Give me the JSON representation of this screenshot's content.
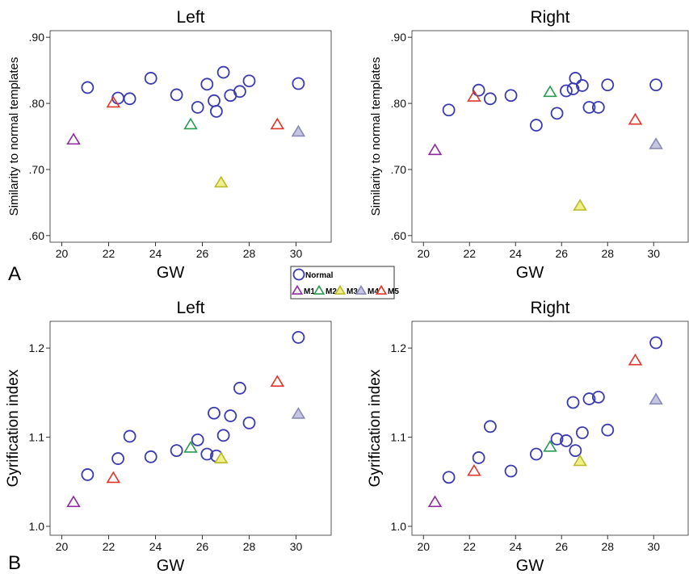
{
  "panel_labels": {
    "A": "A",
    "B": "B"
  },
  "legend": {
    "items": [
      {
        "key": "Normal",
        "label": "Normal",
        "shape": "circle",
        "color": "#3b3bb0",
        "fill": "none"
      },
      {
        "key": "M1",
        "label": "M1",
        "shape": "triangle",
        "color": "#8e2b9e",
        "fill": "none"
      },
      {
        "key": "M2",
        "label": "M2",
        "shape": "triangle",
        "color": "#2a9a50",
        "fill": "none"
      },
      {
        "key": "M3",
        "label": "M3",
        "shape": "triangle",
        "color": "#b9b92a",
        "fill": "#f0f08a"
      },
      {
        "key": "M4",
        "label": "M4",
        "shape": "triangle",
        "color": "#8a8ab8",
        "fill": "#c6c6e2"
      },
      {
        "key": "M5",
        "label": "M5",
        "shape": "triangle",
        "color": "#e0352b",
        "fill": "none"
      }
    ]
  },
  "chart_data": [
    {
      "type": "scatter",
      "title": "Left",
      "xlabel": "GW",
      "ylabel": "Similarity to normal templates",
      "xlim": [
        19.5,
        31.5
      ],
      "ylim": [
        0.59,
        0.91
      ],
      "xticks": [
        "20",
        "22",
        "24",
        "26",
        "28",
        "30"
      ],
      "yticks": [
        ".60",
        ".70",
        ".80",
        ".90"
      ],
      "series": [
        {
          "name": "Normal",
          "points": [
            [
              21.1,
              0.824
            ],
            [
              22.4,
              0.808
            ],
            [
              22.9,
              0.807
            ],
            [
              23.8,
              0.838
            ],
            [
              24.9,
              0.813
            ],
            [
              25.8,
              0.794
            ],
            [
              26.2,
              0.829
            ],
            [
              26.5,
              0.804
            ],
            [
              26.6,
              0.788
            ],
            [
              26.9,
              0.847
            ],
            [
              27.2,
              0.812
            ],
            [
              27.6,
              0.818
            ],
            [
              28.0,
              0.834
            ],
            [
              30.1,
              0.83
            ]
          ]
        },
        {
          "name": "M1",
          "points": [
            [
              20.5,
              0.745
            ]
          ]
        },
        {
          "name": "M2",
          "points": [
            [
              25.5,
              0.768
            ]
          ]
        },
        {
          "name": "M3",
          "points": [
            [
              26.8,
              0.68
            ]
          ]
        },
        {
          "name": "M4",
          "points": [
            [
              30.1,
              0.757
            ]
          ]
        },
        {
          "name": "M5",
          "points": [
            [
              22.2,
              0.801
            ],
            [
              29.2,
              0.768
            ]
          ]
        }
      ]
    },
    {
      "type": "scatter",
      "title": "Right",
      "xlabel": "GW",
      "ylabel": "Similarity to normal templates",
      "xlim": [
        19.5,
        31.5
      ],
      "ylim": [
        0.59,
        0.91
      ],
      "xticks": [
        "20",
        "22",
        "24",
        "26",
        "28",
        "30"
      ],
      "yticks": [
        ".60",
        ".70",
        ".80",
        ".90"
      ],
      "series": [
        {
          "name": "Normal",
          "points": [
            [
              21.1,
              0.79
            ],
            [
              22.4,
              0.82
            ],
            [
              22.9,
              0.807
            ],
            [
              23.8,
              0.812
            ],
            [
              24.9,
              0.767
            ],
            [
              25.8,
              0.785
            ],
            [
              26.2,
              0.819
            ],
            [
              26.5,
              0.822
            ],
            [
              26.6,
              0.838
            ],
            [
              26.9,
              0.827
            ],
            [
              27.2,
              0.794
            ],
            [
              27.6,
              0.794
            ],
            [
              28.0,
              0.828
            ],
            [
              30.1,
              0.828
            ]
          ]
        },
        {
          "name": "M1",
          "points": [
            [
              20.5,
              0.729
            ]
          ]
        },
        {
          "name": "M2",
          "points": [
            [
              25.5,
              0.817
            ]
          ]
        },
        {
          "name": "M3",
          "points": [
            [
              26.8,
              0.645
            ]
          ]
        },
        {
          "name": "M4",
          "points": [
            [
              30.1,
              0.738
            ]
          ]
        },
        {
          "name": "M5",
          "points": [
            [
              22.2,
              0.81
            ],
            [
              29.2,
              0.775
            ]
          ]
        }
      ]
    },
    {
      "type": "scatter",
      "title": "Left",
      "xlabel": "GW",
      "ylabel": "Gyrification index",
      "xlim": [
        19.5,
        31.5
      ],
      "ylim": [
        0.99,
        1.23
      ],
      "xticks": [
        "20",
        "22",
        "24",
        "26",
        "28",
        "30"
      ],
      "yticks": [
        "1.0",
        "1.1",
        "1.2"
      ],
      "series": [
        {
          "name": "Normal",
          "points": [
            [
              21.1,
              1.058
            ],
            [
              22.4,
              1.076
            ],
            [
              22.9,
              1.101
            ],
            [
              23.8,
              1.078
            ],
            [
              24.9,
              1.085
            ],
            [
              25.8,
              1.097
            ],
            [
              26.2,
              1.081
            ],
            [
              26.5,
              1.127
            ],
            [
              26.6,
              1.079
            ],
            [
              26.9,
              1.102
            ],
            [
              27.2,
              1.124
            ],
            [
              27.6,
              1.155
            ],
            [
              28.0,
              1.116
            ],
            [
              30.1,
              1.212
            ]
          ]
        },
        {
          "name": "M1",
          "points": [
            [
              20.5,
              1.027
            ]
          ]
        },
        {
          "name": "M2",
          "points": [
            [
              25.5,
              1.088
            ]
          ]
        },
        {
          "name": "M3",
          "points": [
            [
              26.8,
              1.076
            ]
          ]
        },
        {
          "name": "M4",
          "points": [
            [
              30.1,
              1.126
            ]
          ]
        },
        {
          "name": "M5",
          "points": [
            [
              22.2,
              1.054
            ],
            [
              29.2,
              1.162
            ]
          ]
        }
      ]
    },
    {
      "type": "scatter",
      "title": "Right",
      "xlabel": "GW",
      "ylabel": "Gyrification index",
      "xlim": [
        19.5,
        31.5
      ],
      "ylim": [
        0.99,
        1.23
      ],
      "xticks": [
        "20",
        "22",
        "24",
        "26",
        "28",
        "30"
      ],
      "yticks": [
        "1.0",
        "1.1",
        "1.2"
      ],
      "series": [
        {
          "name": "Normal",
          "points": [
            [
              21.1,
              1.055
            ],
            [
              22.4,
              1.077
            ],
            [
              22.9,
              1.112
            ],
            [
              23.8,
              1.062
            ],
            [
              24.9,
              1.081
            ],
            [
              25.8,
              1.098
            ],
            [
              26.2,
              1.096
            ],
            [
              26.5,
              1.139
            ],
            [
              26.6,
              1.085
            ],
            [
              26.9,
              1.105
            ],
            [
              27.2,
              1.143
            ],
            [
              27.6,
              1.145
            ],
            [
              28.0,
              1.108
            ],
            [
              30.1,
              1.206
            ]
          ]
        },
        {
          "name": "M1",
          "points": [
            [
              20.5,
              1.027
            ]
          ]
        },
        {
          "name": "M2",
          "points": [
            [
              25.5,
              1.089
            ]
          ]
        },
        {
          "name": "M3",
          "points": [
            [
              26.8,
              1.073
            ]
          ]
        },
        {
          "name": "M4",
          "points": [
            [
              30.1,
              1.142
            ]
          ]
        },
        {
          "name": "M5",
          "points": [
            [
              22.2,
              1.062
            ],
            [
              29.2,
              1.186
            ]
          ]
        }
      ]
    }
  ]
}
